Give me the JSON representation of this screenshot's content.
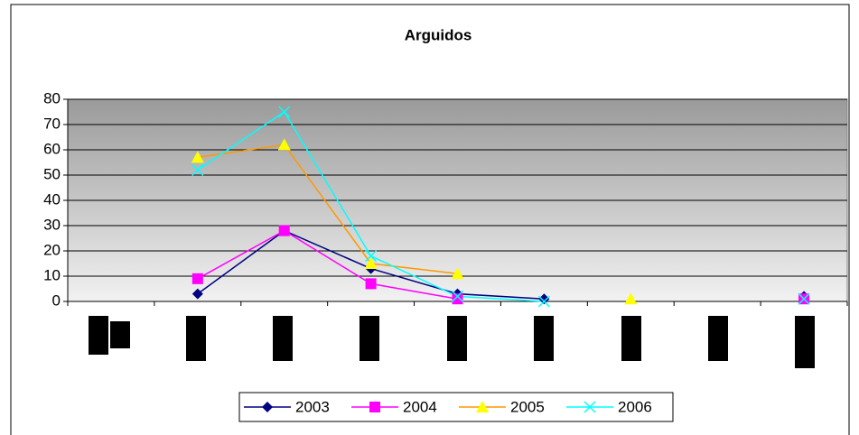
{
  "chart_data": {
    "type": "line",
    "title": "Arguidos",
    "categories": [
      null,
      null,
      null,
      null,
      null,
      null,
      null,
      null,
      null
    ],
    "series": [
      {
        "name": "2003",
        "color": "#000080",
        "marker": "diamond",
        "marker_color": "#000080",
        "values": [
          null,
          3,
          28,
          13,
          3,
          1,
          null,
          null,
          2
        ]
      },
      {
        "name": "2004",
        "color": "#ff00ff",
        "marker": "square",
        "marker_color": "#ff00ff",
        "values": [
          null,
          9,
          28,
          7,
          1,
          null,
          null,
          null,
          1
        ]
      },
      {
        "name": "2005",
        "color": "#ff9900",
        "marker": "triangle",
        "marker_color": "#ffff00",
        "values": [
          null,
          57,
          62,
          15,
          11,
          null,
          1,
          null,
          null
        ]
      },
      {
        "name": "2006",
        "color": "#00ffff",
        "marker": "x",
        "marker_color": "#00ffff",
        "values": [
          null,
          52,
          75,
          18,
          2,
          0,
          null,
          null,
          1
        ]
      }
    ],
    "ylim": [
      0,
      80
    ],
    "yticks": [
      0,
      10,
      20,
      30,
      40,
      50,
      60,
      70,
      80
    ],
    "grid": true,
    "legend": "bottom"
  }
}
